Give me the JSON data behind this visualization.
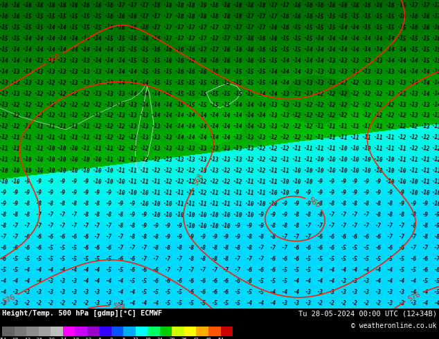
{
  "title_left": "Height/Temp. 500 hPa [gdmp][°C] ECMWF",
  "title_right": "Tu 28-05-2024 00:00 UTC (12+34B)",
  "copyright": "© weatheronline.co.uk",
  "colorbar_values": [
    "-54",
    "-48",
    "-42",
    "-36",
    "-30",
    "-24",
    "-18",
    "-12",
    "-6",
    "0",
    "6",
    "12",
    "18",
    "24",
    "30",
    "36",
    "42",
    "48",
    "54"
  ],
  "colorbar_colors": [
    "#646464",
    "#787878",
    "#8c8c8c",
    "#a0a0a0",
    "#bebebe",
    "#ff00ff",
    "#cc00ff",
    "#9900cc",
    "#3300ff",
    "#0055ff",
    "#00aaff",
    "#00ffff",
    "#00ff66",
    "#00cc00",
    "#ccff00",
    "#ffff00",
    "#ffaa00",
    "#ff5500",
    "#cc0000"
  ],
  "background_color": "#000000",
  "fig_width": 6.34,
  "fig_height": 4.9,
  "dpi": 100,
  "map_cyan": "#00eeff",
  "map_green_light": "#22cc22",
  "map_green_dark": "#008800",
  "contour_color": "#ff2200",
  "text_color": "#000000"
}
